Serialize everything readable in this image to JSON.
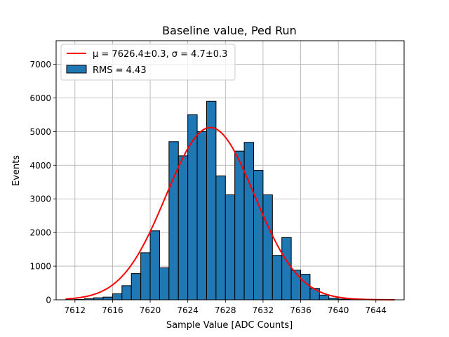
{
  "chart_data": {
    "type": "bar",
    "title": "Baseline value, Ped Run",
    "xlabel": "Sample Value [ADC Counts]",
    "ylabel": "Events",
    "xlim": [
      7610,
      7647
    ],
    "ylim": [
      0,
      7700
    ],
    "grid": true,
    "legend_placement": "top-left",
    "bar_color": "#1f77b4",
    "fit_color": "#ff0000",
    "xticks": [
      "7612",
      "7616",
      "7620",
      "7624",
      "7628",
      "7632",
      "7636",
      "7640",
      "7644"
    ],
    "yticks": [
      "0",
      "1000",
      "2000",
      "3000",
      "4000",
      "5000",
      "6000",
      "7000"
    ],
    "bin_edges": [
      7611,
      7612,
      7613,
      7614,
      7615,
      7616,
      7617,
      7618,
      7619,
      7620,
      7621,
      7622,
      7623,
      7624,
      7625,
      7626,
      7627,
      7628,
      7629,
      7630,
      7631,
      7632,
      7633,
      7634,
      7635,
      7636,
      7637,
      7638,
      7639,
      7640,
      7641,
      7642,
      7643,
      7644,
      7645,
      7646
    ],
    "bin_counts": [
      5,
      10,
      30,
      60,
      80,
      180,
      420,
      780,
      1400,
      2050,
      950,
      4700,
      4280,
      5500,
      5000,
      5900,
      3680,
      3120,
      4420,
      4680,
      3850,
      3120,
      1320,
      1850,
      880,
      760,
      340,
      140,
      50,
      20,
      10,
      5,
      0,
      0,
      0
    ],
    "fit": {
      "mu": 7626.4,
      "sigma": 4.7,
      "amplitude": 5120
    },
    "legend": [
      {
        "label": "μ = 7626.4±0.3, σ = 4.7±0.3",
        "kind": "line"
      },
      {
        "label": "RMS = 4.43",
        "kind": "patch"
      }
    ]
  }
}
